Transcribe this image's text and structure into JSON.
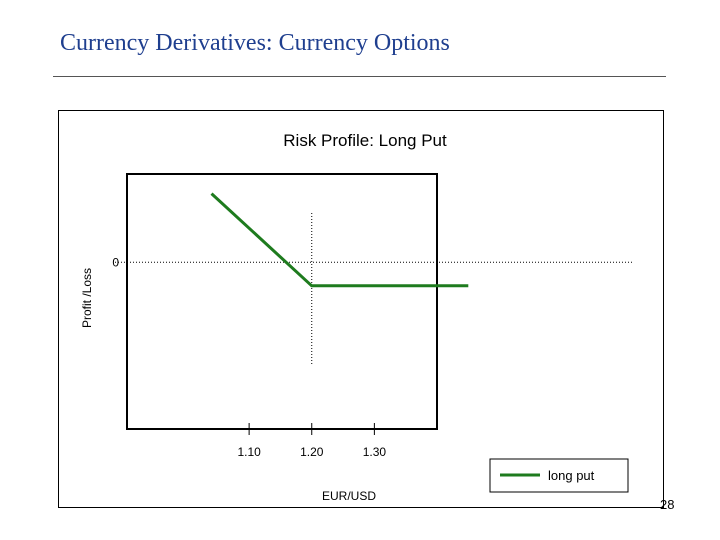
{
  "slide": {
    "title": "Currency Derivatives: Currency Options",
    "page_number": "28"
  },
  "chart_data": {
    "type": "line",
    "title": "Risk Profile: Long Put",
    "xlabel": "EUR/USD",
    "ylabel": "Profit /Loss",
    "x_tick_labels": [
      "1.10",
      "1.20",
      "1.30"
    ],
    "x_ticks": [
      1.1,
      1.2,
      1.3
    ],
    "y_tick_labels": [
      "0"
    ],
    "y_ticks": [
      0
    ],
    "xlim": [
      0.905,
      1.4
    ],
    "ylim": [
      -0.085,
      0.045
    ],
    "strike": 1.2,
    "grid": false,
    "legend_position": "bottom-right",
    "series": [
      {
        "name": "long put",
        "color": "#1e7b1e",
        "x": [
          1.04,
          1.2,
          1.45
        ],
        "y": [
          0.035,
          -0.012,
          -0.012
        ]
      }
    ]
  }
}
